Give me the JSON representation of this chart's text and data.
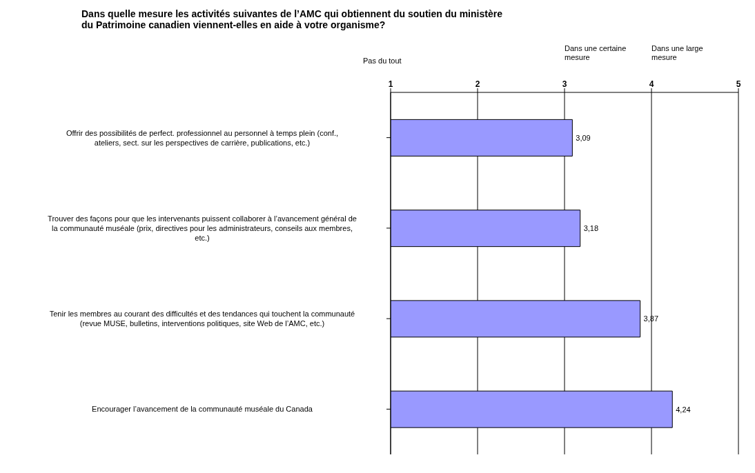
{
  "chart_data": {
    "type": "bar",
    "orientation": "horizontal",
    "title": "Dans quelle mesure les activités suivantes de l’AMC qui obtiennent du soutien du ministère du Patrimoine canadien viennent-elles en aide à votre organisme?",
    "categories": [
      "Offrir des possibilités de perfect. professionnel au personnel à temps plein (conf., ateliers, sect. sur les perspectives de carrière, publications, etc.)",
      "Trouver des façons pour que les intervenants puissent collaborer à l’avancement général de la communauté muséale (prix, directives pour les administrateurs, conseils aux membres, etc.)",
      "Tenir les membres au courant des difficultés et des tendances qui touchent la communauté (revue MUSE, bulletins, interventions politiques, site Web de l’AMC, etc.)",
      "Encourager l’avancement de la communauté muséale du Canada"
    ],
    "values": [
      3.09,
      3.18,
      3.87,
      4.24
    ],
    "value_labels": [
      "3,09",
      "3,18",
      "3,87",
      "4,24"
    ],
    "color": "#9999ff",
    "xlim": [
      1,
      5
    ],
    "xticks": [
      1,
      2,
      3,
      4,
      5
    ],
    "grid": "x",
    "annotations": [
      "Pas du tout",
      "Dans une certaine mesure",
      "Dans une large mesure"
    ]
  }
}
